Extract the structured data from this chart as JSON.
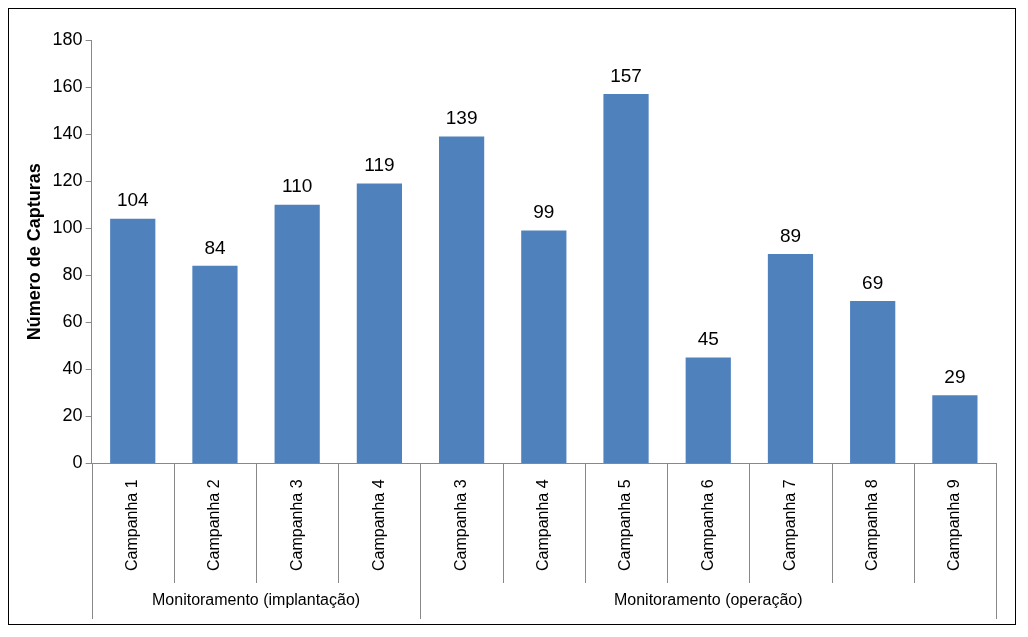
{
  "chart_data": {
    "type": "bar",
    "ylabel": "Número de Capturas",
    "categories": [
      "Campanha 1",
      "Campanha 2",
      "Campanha 3",
      "Campanha 4",
      "Campanha 3",
      "Campanha 4",
      "Campanha 5",
      "Campanha 6",
      "Campanha 7",
      "Campanha 8",
      "Campanha 9"
    ],
    "values": [
      104,
      84,
      110,
      119,
      139,
      99,
      157,
      45,
      89,
      69,
      29
    ],
    "color": "#4f81bd",
    "ylim": [
      0,
      180
    ],
    "yticks": [
      0,
      20,
      40,
      60,
      80,
      100,
      120,
      140,
      160,
      180
    ],
    "grid": false,
    "legend": false,
    "data_labels": true,
    "annotations": [
      "Monitoramento (implantação)",
      "Monitoramento (operação)"
    ]
  }
}
